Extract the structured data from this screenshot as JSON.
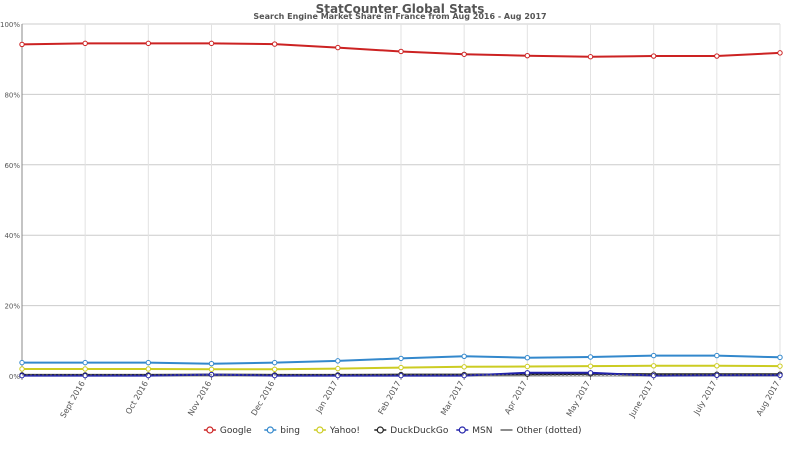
{
  "chart_data": {
    "type": "line",
    "title": "StatCounter Global Stats",
    "subtitle": "Search Engine Market Share in France from Aug 2016 - Aug 2017",
    "xlabel": "",
    "ylabel": "",
    "ylim": [
      0,
      100
    ],
    "y_ticks": [
      "0%",
      "20%",
      "40%",
      "60%",
      "80%",
      "100%"
    ],
    "y_tick_values": [
      0,
      20,
      40,
      60,
      80,
      100
    ],
    "categories": [
      "Aug 2016",
      "Sept 2016",
      "Oct 2016",
      "Nov 2016",
      "Dec 2016",
      "Jan 2017",
      "Feb 2017",
      "Mar 2017",
      "Apr 2017",
      "May 2017",
      "June 2017",
      "July 2017",
      "Aug 2017"
    ],
    "x_tick_labels": [
      "",
      "Sept 2016",
      "Oct 2016",
      "Nov 2016",
      "Dec 2016",
      "Jan 2017",
      "Feb 2017",
      "Mar 2017",
      "Apr 2017",
      "May 2017",
      "June 2017",
      "July 2017",
      "Aug 2017"
    ],
    "grid": true,
    "legend_position": "bottom",
    "series": [
      {
        "name": "Google",
        "color": "#cc2222",
        "marker": true,
        "values": [
          94.2,
          94.5,
          94.5,
          94.5,
          94.3,
          93.3,
          92.2,
          91.4,
          91.0,
          90.7,
          90.9,
          90.9,
          91.8
        ]
      },
      {
        "name": "bing",
        "color": "#3388cc",
        "marker": true,
        "values": [
          3.8,
          3.8,
          3.8,
          3.5,
          3.8,
          4.3,
          5.0,
          5.6,
          5.2,
          5.4,
          5.8,
          5.8,
          5.3
        ]
      },
      {
        "name": "Yahoo!",
        "color": "#cccc22",
        "marker": true,
        "values": [
          2.0,
          2.0,
          2.0,
          1.9,
          1.9,
          2.1,
          2.4,
          2.6,
          2.7,
          2.8,
          2.9,
          2.9,
          2.8
        ]
      },
      {
        "name": "DuckDuckGo",
        "color": "#222222",
        "marker": true,
        "values": [
          0.3,
          0.3,
          0.3,
          0.4,
          0.3,
          0.3,
          0.4,
          0.4,
          0.5,
          0.6,
          0.5,
          0.5,
          0.5
        ]
      },
      {
        "name": "MSN",
        "color": "#2222aa",
        "marker": true,
        "values": [
          0.1,
          0.1,
          0.1,
          0.4,
          0.1,
          0.1,
          0.1,
          0.1,
          0.9,
          0.9,
          0.1,
          0.2,
          0.2
        ]
      },
      {
        "name": "Other (dotted)",
        "color": "#666666",
        "marker": false,
        "dotted": true,
        "values": [
          0.3,
          0.3,
          0.3,
          0.3,
          0.3,
          0.3,
          0.3,
          0.3,
          0.3,
          0.3,
          0.3,
          0.3,
          0.3
        ]
      }
    ]
  }
}
